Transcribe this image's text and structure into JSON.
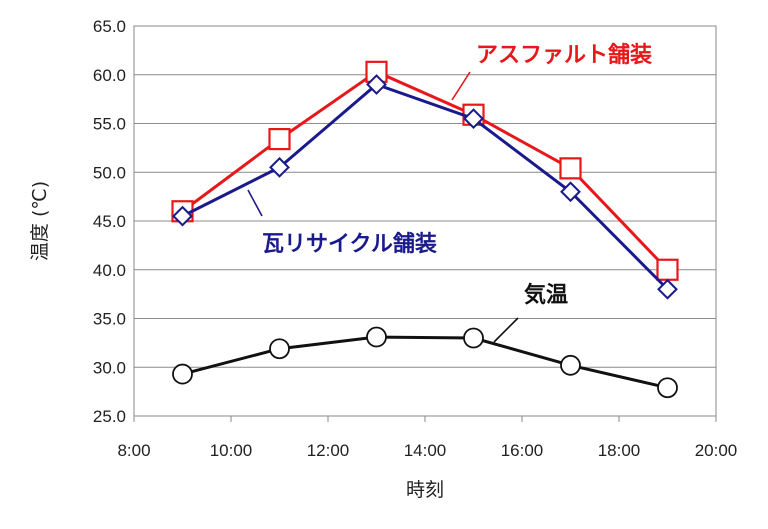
{
  "chart_data": {
    "type": "line",
    "xlabel": "時刻",
    "ylabel": "温度 (℃)",
    "xlim": [
      "8:00",
      "20:00"
    ],
    "ylim": [
      25.0,
      65.0
    ],
    "x_ticks": [
      "8:00",
      "10:00",
      "12:00",
      "14:00",
      "16:00",
      "18:00",
      "20:00"
    ],
    "y_ticks": [
      "25.0",
      "30.0",
      "35.0",
      "40.0",
      "45.0",
      "50.0",
      "55.0",
      "60.0",
      "65.0"
    ],
    "grid": "horizontal",
    "x": [
      "9:00",
      "11:00",
      "13:00",
      "15:00",
      "17:00",
      "19:00"
    ],
    "series": [
      {
        "name": "アスファルト舗装",
        "color": "#e8171a",
        "marker": "square",
        "values": [
          46.0,
          53.4,
          60.3,
          55.9,
          50.4,
          40.0
        ]
      },
      {
        "name": "瓦リサイクル舗装",
        "color": "#1a1a8c",
        "marker": "diamond",
        "values": [
          45.5,
          50.5,
          59.0,
          55.5,
          48.0,
          38.0
        ]
      },
      {
        "name": "気温",
        "color": "#111111",
        "marker": "circle",
        "values": [
          29.3,
          31.9,
          33.1,
          33.0,
          30.2,
          27.9
        ]
      }
    ]
  }
}
